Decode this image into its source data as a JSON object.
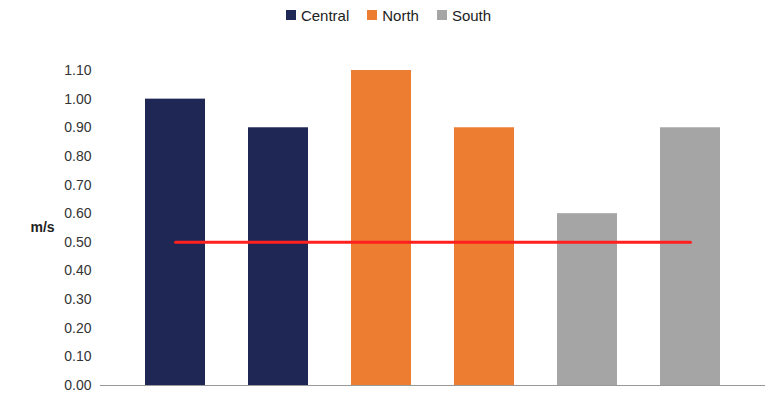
{
  "chart_data": {
    "type": "bar",
    "categories": [
      null,
      null,
      null,
      null,
      null,
      null
    ],
    "series": [
      {
        "name": "Central",
        "color": "#1f2755",
        "values": [
          1.0,
          0.9,
          null,
          null,
          null,
          null
        ]
      },
      {
        "name": "North",
        "color": "#ed7d31",
        "values": [
          null,
          null,
          1.1,
          0.9,
          null,
          null
        ]
      },
      {
        "name": "South",
        "color": "#a5a5a5",
        "values": [
          null,
          null,
          null,
          null,
          0.6,
          0.9
        ]
      }
    ],
    "threshold": 0.5,
    "y_label": "m/s",
    "ylim": [
      0,
      1.1
    ],
    "yticks": [
      {
        "value": 0,
        "label": "0.00"
      },
      {
        "value": 0.1,
        "label": "0.10"
      },
      {
        "value": 0.2,
        "label": "0.20"
      },
      {
        "value": 0.3,
        "label": "0.30"
      },
      {
        "value": 0.4,
        "label": "0.40"
      },
      {
        "value": 0.5,
        "label": "0.50"
      },
      {
        "value": 0.6,
        "label": "0.60"
      },
      {
        "value": 0.7,
        "label": "0.70"
      },
      {
        "value": 0.8,
        "label": "0.80"
      },
      {
        "value": 0.9,
        "label": "0.90"
      },
      {
        "value": 1.0,
        "label": "1.00"
      },
      {
        "value": 1.1,
        "label": "1.10"
      }
    ],
    "grid": false,
    "legend": "top",
    "data_labels": false
  }
}
